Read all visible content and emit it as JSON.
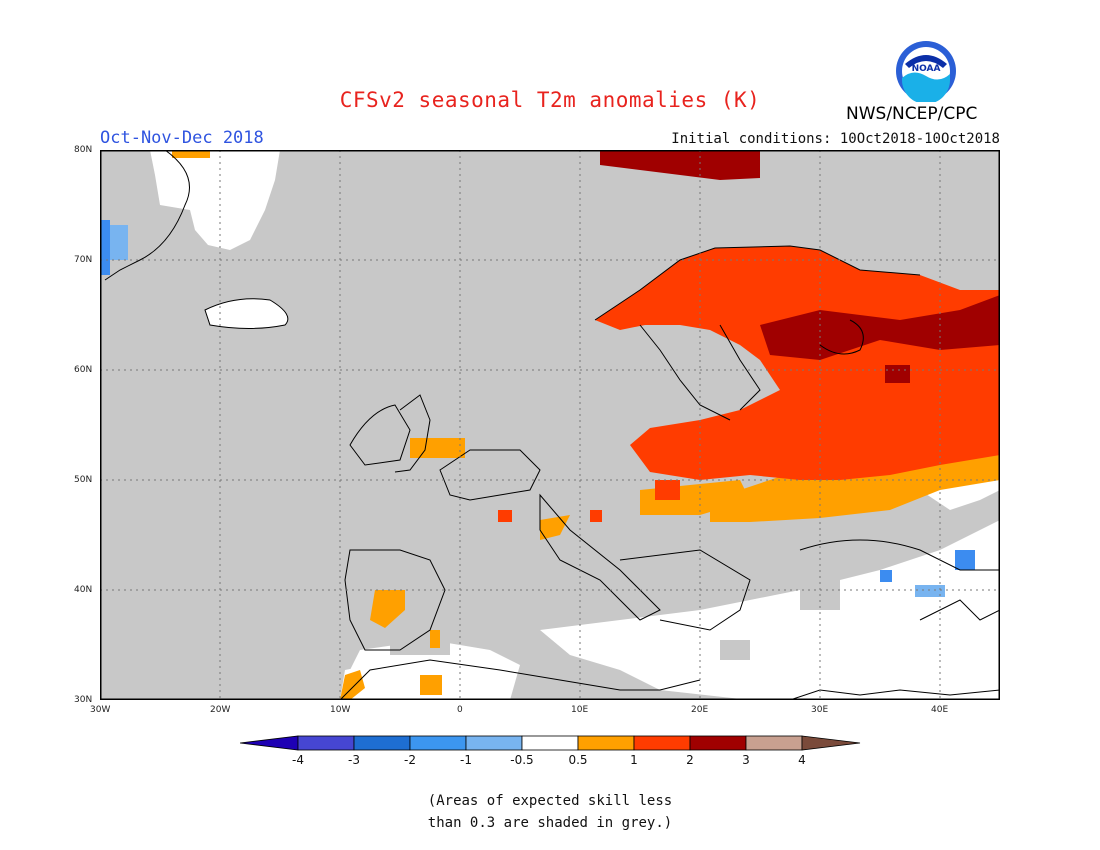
{
  "title": "CFSv2 seasonal T2m anomalies (K)",
  "season": "Oct-Nov-Dec 2018",
  "initial_conditions": "Initial conditions: 10Oct2018-10Oct2018",
  "organization": "NWS/NCEP/CPC",
  "logo_text": "NOAA",
  "note": "(Areas of expected skill less\nthan 0.3 are shaded in grey.)",
  "map": {
    "lon_range": [
      -30,
      45
    ],
    "lat_range": [
      30,
      80
    ],
    "lat_labels": [
      "80N",
      "70N",
      "60N",
      "50N",
      "40N",
      "30N"
    ],
    "lon_labels": [
      "30W",
      "20W",
      "10W",
      "0",
      "10E",
      "20E",
      "30E",
      "40E"
    ],
    "grid": "dotted",
    "colors": {
      "low_skill": "#c8c8c8",
      "neutral": "#ffffff",
      "warm_0_5_1": "#ffa000",
      "warm_1_2": "#ff3c00",
      "warm_2_3": "#a00000",
      "warm_3_4": "#c8a090",
      "cool_1_0_5": "#78b4f0",
      "cool_2_1": "#3c8cf0"
    }
  },
  "colorbar": {
    "labels": [
      "-4",
      "-3",
      "-2",
      "-1",
      "-0.5",
      "0.5",
      "1",
      "2",
      "3",
      "4"
    ],
    "colors": [
      "#1e00b4",
      "#4646d2",
      "#1e6ed2",
      "#3c96f0",
      "#78b4f0",
      "#ffffff",
      "#ffa000",
      "#ff3c00",
      "#a00000",
      "#c8a090",
      "#7a4a3a"
    ]
  }
}
